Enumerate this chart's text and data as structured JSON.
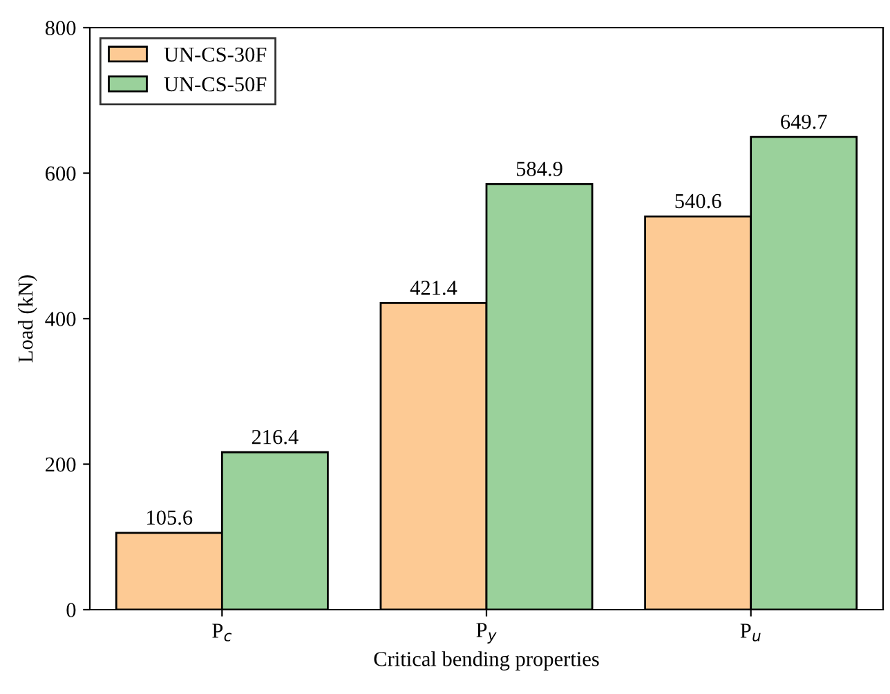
{
  "chart_data": {
    "type": "bar",
    "xlabel": "Critical bending properties",
    "ylabel": "Load (kN)",
    "categories": [
      "P$_{c}$",
      "P$_{y}$",
      "P$_{u}$"
    ],
    "series": [
      {
        "name": "UN-CS-30F",
        "color": "#fdca94",
        "values": [
          105.6,
          421.4,
          540.6
        ]
      },
      {
        "name": "UN-CS-50F",
        "color": "#9ad19b",
        "values": [
          216.4,
          584.9,
          649.7
        ]
      }
    ],
    "ylim": [
      0,
      800
    ],
    "yticks": [
      0,
      200,
      400,
      600,
      800
    ],
    "data_labels": true,
    "legend": "top left",
    "grid": false
  }
}
